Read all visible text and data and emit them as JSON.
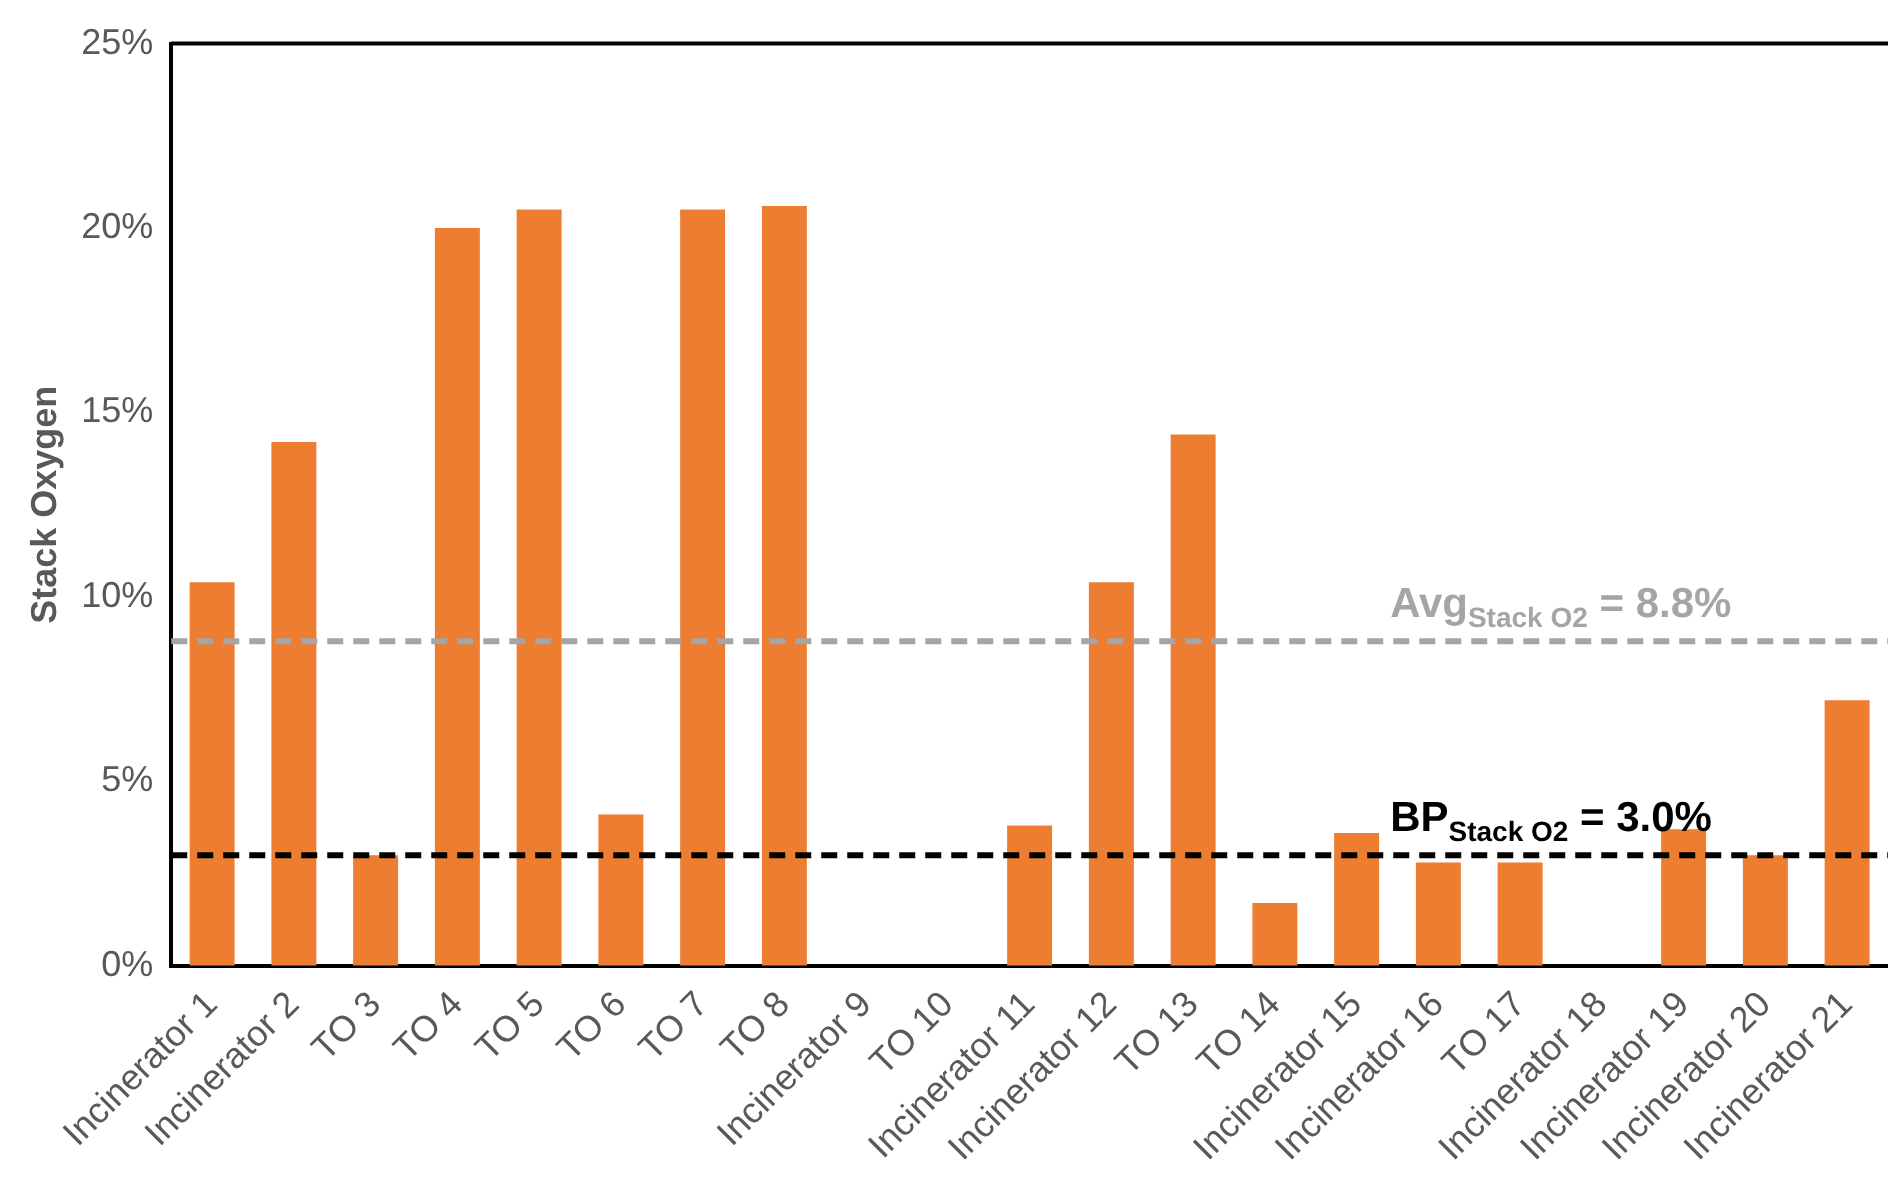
{
  "chart_data": {
    "type": "bar",
    "ylabel": "Stack Oxygen",
    "categories": [
      "Incinerator 1",
      "Incinerator 2",
      "TO 3",
      "TO 4",
      "TO 5",
      "TO 6",
      "TO 7",
      "TO 8",
      "Incinerator 9",
      "TO 10",
      "Incinerator 11",
      "Incinerator 12",
      "TO 13",
      "TO 14",
      "Incinerator 15",
      "Incinerator 16",
      "TO 17",
      "Incinerator 18",
      "Incinerator 19",
      "Incinerator 20",
      "Incinerator 21"
    ],
    "series": [
      {
        "color": "#ed7d31",
        "values": [
          10.4,
          14.2,
          3.0,
          20.0,
          20.5,
          4.1,
          20.5,
          20.6,
          null,
          null,
          3.8,
          10.4,
          14.4,
          1.7,
          3.6,
          2.8,
          2.8,
          null,
          3.7,
          3.0,
          7.2
        ]
      }
    ],
    "ylim": [
      0,
      25
    ],
    "yticks": [
      {
        "value": 0,
        "label": "0%"
      },
      {
        "value": 5,
        "label": "5%"
      },
      {
        "value": 10,
        "label": "10%"
      },
      {
        "value": 15,
        "label": "15%"
      },
      {
        "value": 20,
        "label": "20%"
      },
      {
        "value": 25,
        "label": "25%"
      }
    ],
    "ref_lines": [
      {
        "axis": "y",
        "value": 8.8,
        "label": "Avg$_{Stack O2}$ = 8.8%",
        "color": "#a5a5a5",
        "line_style": "dashed"
      },
      {
        "axis": "y",
        "value": 3.0,
        "label": "BP$_{Stack O2}$ = 3.0%",
        "color": "#000000",
        "line_style": "dashed"
      }
    ],
    "grid": false,
    "legend": false
  }
}
